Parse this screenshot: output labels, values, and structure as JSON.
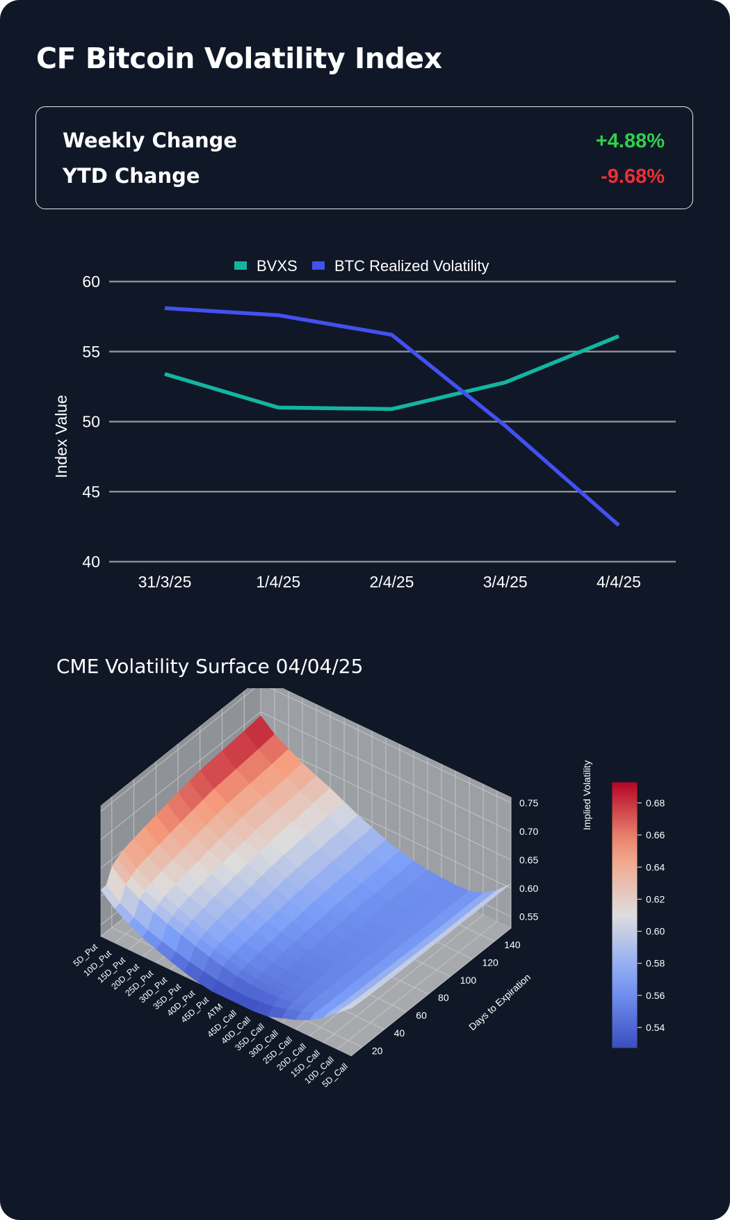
{
  "header": {
    "title": "CF Bitcoin Volatility Index"
  },
  "stats": {
    "weekly_label": "Weekly Change",
    "weekly_value": "+4.88%",
    "ytd_label": "YTD Change",
    "ytd_value": "-9.68%",
    "positive_color": "#2fd14a",
    "negative_color": "#ee2f35"
  },
  "chart_data": [
    {
      "type": "line",
      "title": "",
      "categories": [
        "31/3/25",
        "1/4/25",
        "2/4/25",
        "3/4/25",
        "4/4/25"
      ],
      "series": [
        {
          "name": "BVXS",
          "color": "#13b5a0",
          "values": [
            53.4,
            51.0,
            50.9,
            52.8,
            56.1
          ]
        },
        {
          "name": "BTC Realized Volatility",
          "color": "#4251f0",
          "values": [
            58.1,
            57.6,
            56.2,
            49.7,
            42.6
          ]
        }
      ],
      "xlabel": "",
      "ylabel": "Index Value",
      "ylim": [
        40,
        60
      ],
      "yticks": [
        40,
        45,
        50,
        55,
        60
      ],
      "grid": true,
      "legend": "top-center"
    },
    {
      "type": "surface",
      "title": "CME Volatility Surface 04/04/25",
      "x_label": "",
      "y_label": "Days to Expiration",
      "z_label": "Implied Volatility",
      "strikes": [
        "5D_Put",
        "10D_Put",
        "15D_Put",
        "20D_Put",
        "25D_Put",
        "30D_Put",
        "35D_Put",
        "40D_Put",
        "45D_Put",
        "ATM",
        "45D_Call",
        "40D_Call",
        "35D_Call",
        "30D_Call",
        "25D_Call",
        "20D_Call",
        "15D_Call",
        "10D_Call",
        "5D_Call"
      ],
      "y_ticks": [
        20,
        40,
        60,
        80,
        100,
        120,
        140
      ],
      "z_ticks": [
        0.55,
        0.6,
        0.65,
        0.7,
        0.75
      ],
      "colorbar_ticks": [
        0.54,
        0.56,
        0.58,
        0.6,
        0.62,
        0.64,
        0.66,
        0.68
      ],
      "colorbar_range": [
        0.527,
        0.693
      ],
      "colormap": "coolwarm",
      "days": [
        10,
        15,
        20,
        25,
        30,
        40,
        50,
        60,
        70,
        80,
        90,
        100,
        120,
        140,
        155
      ],
      "front_vol": [
        0.612,
        0.592,
        0.578,
        0.568,
        0.56,
        0.553,
        0.547,
        0.542,
        0.538,
        0.535,
        0.534,
        0.536,
        0.539,
        0.546,
        0.553,
        0.563,
        0.577,
        0.596,
        0.614
      ],
      "front_min": 0.527,
      "back_vol": [
        0.693,
        0.672,
        0.658,
        0.645,
        0.634,
        0.624,
        0.612,
        0.6,
        0.59,
        0.58,
        0.572,
        0.566,
        0.562,
        0.56,
        0.559,
        0.56,
        0.568,
        0.585,
        0.608
      ]
    }
  ]
}
